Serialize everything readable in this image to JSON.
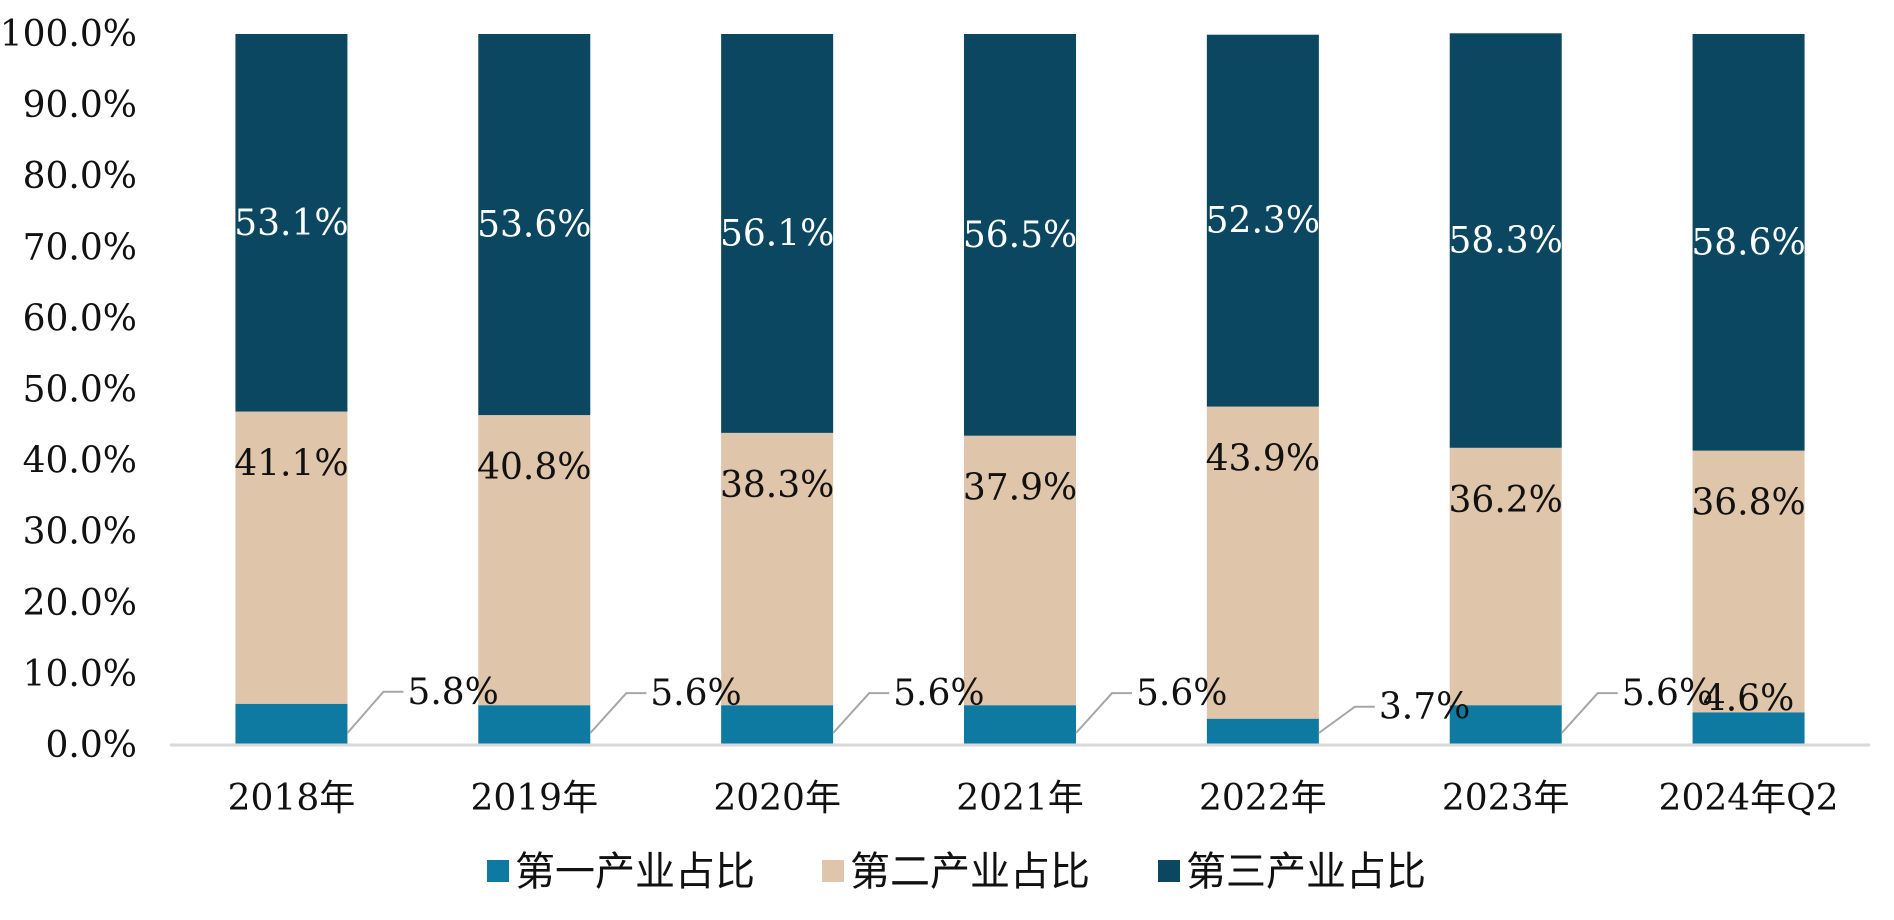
{
  "chart_data": {
    "type": "bar",
    "stacked": true,
    "categories": [
      "2018年",
      "2019年",
      "2020年",
      "2021年",
      "2022年",
      "2023年",
      "2024年Q2"
    ],
    "series": [
      {
        "name": "第一产业占比",
        "color": "#0e7aa1",
        "values": [
          5.8,
          5.6,
          5.6,
          5.6,
          3.7,
          5.6,
          4.6
        ],
        "labels": [
          "5.8%",
          "5.6%",
          "5.6%",
          "5.6%",
          "3.7%",
          "5.6%",
          "4.6%"
        ]
      },
      {
        "name": "第二产业占比",
        "color": "#dfc5aa",
        "values": [
          41.1,
          40.8,
          38.3,
          37.9,
          43.9,
          36.2,
          36.8
        ],
        "labels": [
          "41.1%",
          "40.8%",
          "38.3%",
          "37.9%",
          "43.9%",
          "36.2%",
          "36.8%"
        ]
      },
      {
        "name": "第三产业占比",
        "color": "#0b4760",
        "values": [
          53.1,
          53.6,
          56.1,
          56.5,
          52.3,
          58.3,
          58.6
        ],
        "labels": [
          "53.1%",
          "53.6%",
          "56.1%",
          "56.5%",
          "52.3%",
          "58.3%",
          "58.6%"
        ]
      }
    ],
    "yticks": [
      "0.0%",
      "10.0%",
      "20.0%",
      "30.0%",
      "40.0%",
      "50.0%",
      "60.0%",
      "70.0%",
      "80.0%",
      "90.0%",
      "100.0%"
    ],
    "ylim": [
      0,
      100
    ],
    "title": "",
    "xlabel": "",
    "ylabel": "",
    "grid": false,
    "legend_position": "bottom"
  }
}
